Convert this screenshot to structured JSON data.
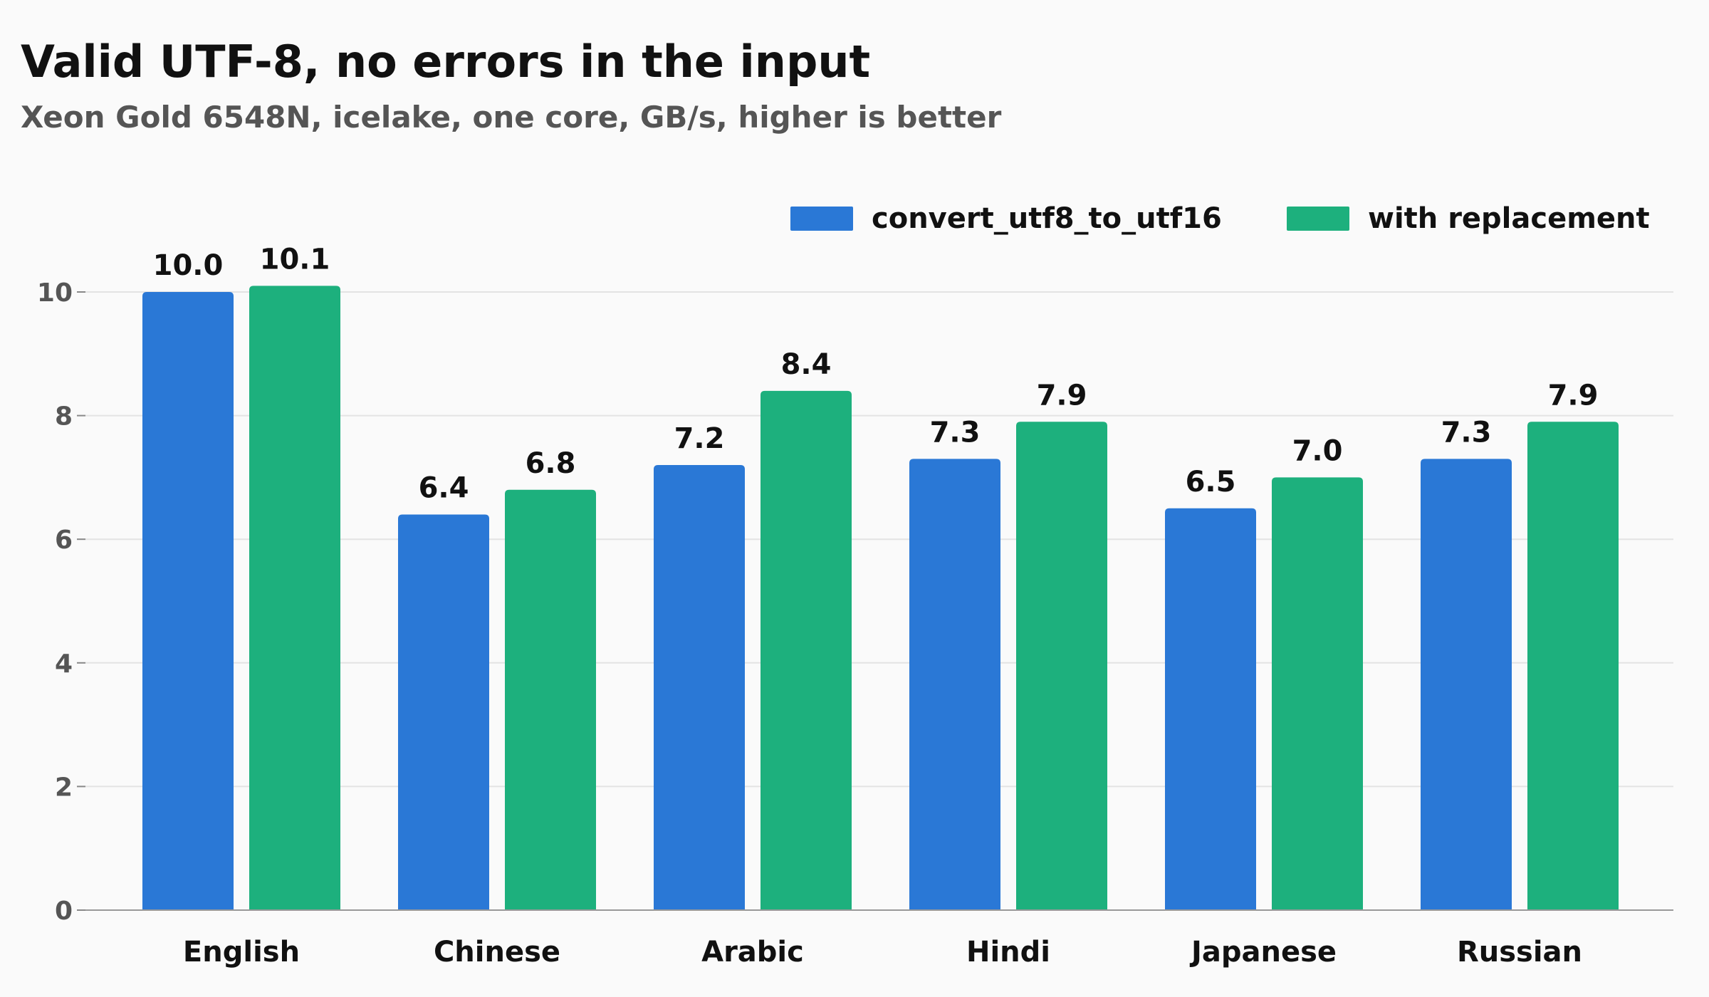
{
  "chart_data": {
    "type": "bar",
    "title": "Valid UTF-8, no errors in the input",
    "subtitle": "Xeon Gold 6548N, icelake, one core, GB/s, higher is better",
    "categories": [
      "English",
      "Chinese",
      "Arabic",
      "Hindi",
      "Japanese",
      "Russian"
    ],
    "series": [
      {
        "name": "convert_utf8_to_utf16",
        "color": "#2a78d6",
        "values": [
          10.0,
          6.4,
          7.2,
          7.3,
          6.5,
          7.3
        ],
        "labels": [
          "10.0",
          "6.4",
          "7.2",
          "7.3",
          "6.5",
          "7.3"
        ]
      },
      {
        "name": "with replacement",
        "color": "#1db07d",
        "values": [
          10.1,
          6.8,
          8.4,
          7.9,
          7.0,
          7.9
        ],
        "labels": [
          "10.1",
          "6.8",
          "8.4",
          "7.9",
          "7.0",
          "7.9"
        ]
      }
    ],
    "xlabel": "",
    "ylabel": "",
    "ylim": [
      0,
      10
    ],
    "yticks": [
      "0",
      "2",
      "4",
      "6",
      "8",
      "10"
    ],
    "grid": true,
    "legend": "top-right"
  }
}
